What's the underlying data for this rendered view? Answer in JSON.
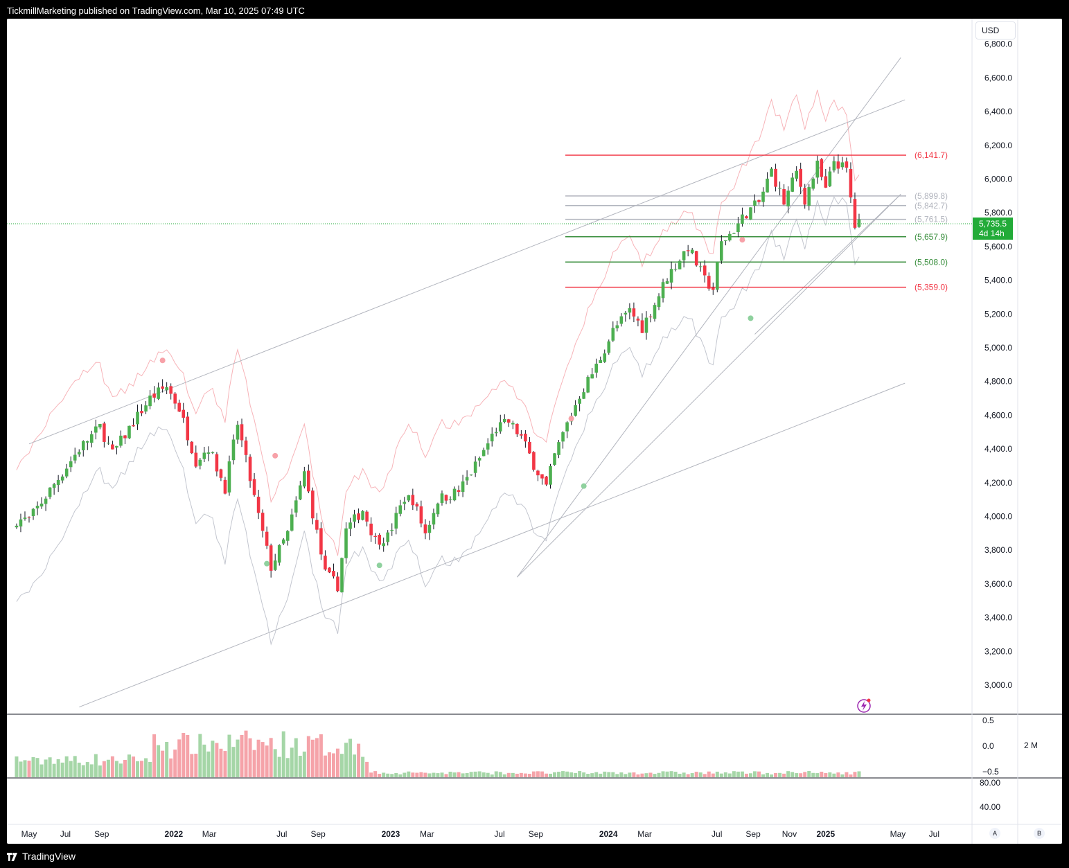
{
  "header": {
    "text": "TickmillMarketing published on TradingView.com, Mar 10, 2025 07:49 UTC"
  },
  "currency": "USD",
  "last_price": {
    "value": "5,735.5",
    "countdown": "4d 14h",
    "color": "#22ab38"
  },
  "footer": {
    "brand": "TradingView"
  },
  "axis_buttons": {
    "auto": "A",
    "log": "B"
  },
  "volume_scale_label": "2 M",
  "colors": {
    "up": "#4caf50",
    "down": "#f23645",
    "fib_red": "#f23645",
    "fib_green": "#388e3c",
    "fib_gray": "#b2b5be",
    "upper_band": "#f7b3b8",
    "lower_band": "#c3c6cf",
    "trendline": "#b2b5be",
    "volume_up": "#a5d6a7",
    "volume_down": "#f5a3a9"
  },
  "chart_data": {
    "type": "candlestick",
    "interval": "weekly",
    "price_axis": {
      "ticks": [
        3000,
        3200,
        3400,
        3600,
        3800,
        4000,
        4200,
        4400,
        4600,
        4800,
        5000,
        5200,
        5400,
        5600,
        5800,
        6000,
        6200,
        6400,
        6600,
        6800
      ],
      "tick_labels": [
        "3,000.0",
        "3,200.0",
        "3,400.0",
        "3,600.0",
        "3,800.0",
        "4,000.0",
        "4,200.0",
        "4,400.0",
        "4,600.0",
        "4,800.0",
        "5,000.0",
        "5,200.0",
        "5,400.0",
        "5,600.0",
        "5,800.0",
        "6,000.0",
        "6,200.0",
        "6,400.0",
        "6,600.0",
        "6,800.0"
      ],
      "range": [
        2840,
        6800
      ]
    },
    "time_axis": {
      "labels": [
        {
          "label": "May",
          "t": 0.0,
          "bold": false
        },
        {
          "label": "Jul",
          "t": 8.7,
          "bold": false
        },
        {
          "label": "Sep",
          "t": 17.4,
          "bold": false
        },
        {
          "label": "2022",
          "t": 34.7,
          "bold": true
        },
        {
          "label": "Mar",
          "t": 43.2,
          "bold": false
        },
        {
          "label": "Jul",
          "t": 60.6,
          "bold": false
        },
        {
          "label": "Sep",
          "t": 69.3,
          "bold": false
        },
        {
          "label": "2023",
          "t": 86.7,
          "bold": true
        },
        {
          "label": "Mar",
          "t": 95.4,
          "bold": false
        },
        {
          "label": "Jul",
          "t": 112.8,
          "bold": false
        },
        {
          "label": "Sep",
          "t": 121.5,
          "bold": false
        },
        {
          "label": "2024",
          "t": 138.9,
          "bold": true
        },
        {
          "label": "Mar",
          "t": 147.6,
          "bold": false
        },
        {
          "label": "Jul",
          "t": 164.9,
          "bold": false
        },
        {
          "label": "Sep",
          "t": 173.6,
          "bold": false
        },
        {
          "label": "Nov",
          "t": 182.3,
          "bold": false
        },
        {
          "label": "2025",
          "t": 191.0,
          "bold": true
        },
        {
          "label": "May",
          "t": 208.3,
          "bold": false
        },
        {
          "label": "Jul",
          "t": 217.0,
          "bold": false
        }
      ]
    },
    "anchors": [
      {
        "t": 0,
        "p": 3980
      },
      {
        "t": 6,
        "p": 4190
      },
      {
        "t": 12,
        "p": 4400
      },
      {
        "t": 17,
        "p": 4530
      },
      {
        "t": 20,
        "p": 4370
      },
      {
        "t": 25,
        "p": 4560
      },
      {
        "t": 29,
        "p": 4700
      },
      {
        "t": 33,
        "p": 4770
      },
      {
        "t": 36,
        "p": 4640
      },
      {
        "t": 40,
        "p": 4330
      },
      {
        "t": 43,
        "p": 4410
      },
      {
        "t": 47,
        "p": 4170
      },
      {
        "t": 50,
        "p": 4550
      },
      {
        "t": 55,
        "p": 4000
      },
      {
        "t": 58,
        "p": 3700
      },
      {
        "t": 62,
        "p": 3900
      },
      {
        "t": 66,
        "p": 4260
      },
      {
        "t": 71,
        "p": 3660
      },
      {
        "t": 74,
        "p": 3590
      },
      {
        "t": 76,
        "p": 3920
      },
      {
        "t": 80,
        "p": 4040
      },
      {
        "t": 83,
        "p": 3860
      },
      {
        "t": 86,
        "p": 3880
      },
      {
        "t": 90,
        "p": 4110
      },
      {
        "t": 92,
        "p": 4100
      },
      {
        "t": 95,
        "p": 3900
      },
      {
        "t": 98,
        "p": 4100
      },
      {
        "t": 103,
        "p": 4150
      },
      {
        "t": 107,
        "p": 4300
      },
      {
        "t": 112,
        "p": 4520
      },
      {
        "t": 115,
        "p": 4560
      },
      {
        "t": 118,
        "p": 4470
      },
      {
        "t": 121,
        "p": 4310
      },
      {
        "t": 124,
        "p": 4170
      },
      {
        "t": 126,
        "p": 4360
      },
      {
        "t": 129,
        "p": 4550
      },
      {
        "t": 132,
        "p": 4720
      },
      {
        "t": 136,
        "p": 4890
      },
      {
        "t": 140,
        "p": 5100
      },
      {
        "t": 144,
        "p": 5220
      },
      {
        "t": 147,
        "p": 5120
      },
      {
        "t": 150,
        "p": 5260
      },
      {
        "t": 153,
        "p": 5420
      },
      {
        "t": 158,
        "p": 5600
      },
      {
        "t": 162,
        "p": 5400
      },
      {
        "t": 164,
        "p": 5350
      },
      {
        "t": 166,
        "p": 5620
      },
      {
        "t": 169,
        "p": 5700
      },
      {
        "t": 172,
        "p": 5800
      },
      {
        "t": 175,
        "p": 5860
      },
      {
        "t": 178,
        "p": 6050
      },
      {
        "t": 181,
        "p": 5860
      },
      {
        "t": 184,
        "p": 6040
      },
      {
        "t": 186,
        "p": 5880
      },
      {
        "t": 189,
        "p": 6080
      },
      {
        "t": 191,
        "p": 5930
      },
      {
        "t": 193,
        "p": 6110
      },
      {
        "t": 196,
        "p": 6050
      },
      {
        "t": 198,
        "p": 5720
      },
      {
        "t": 199,
        "p": 5735
      }
    ],
    "fib_levels": [
      {
        "label": "(6,141.7)",
        "value": 6141.7,
        "color": "#f23645"
      },
      {
        "label": "(5,899.8)",
        "value": 5899.8,
        "color": "#b2b5be"
      },
      {
        "label": "(5,842.7)",
        "value": 5842.7,
        "color": "#b2b5be"
      },
      {
        "label": "(5,761.5)",
        "value": 5761.5,
        "color": "#b2b5be"
      },
      {
        "label": "(5,657.9)",
        "value": 5657.9,
        "color": "#388e3c"
      },
      {
        "label": "(5,508.0)",
        "value": 5508.0,
        "color": "#388e3c"
      },
      {
        "label": "(5,359.0)",
        "value": 5359.0,
        "color": "#f23645"
      }
    ],
    "signal_dots": [
      {
        "t": 32,
        "p": 4925,
        "side": "red"
      },
      {
        "t": 59,
        "p": 4360,
        "side": "red"
      },
      {
        "t": 57,
        "p": 3720,
        "side": "green"
      },
      {
        "t": 84,
        "p": 3710,
        "side": "green"
      },
      {
        "t": 130,
        "p": 4580,
        "side": "red"
      },
      {
        "t": 133,
        "p": 4180,
        "side": "green"
      },
      {
        "t": 171,
        "p": 5640,
        "side": "red"
      },
      {
        "t": 173,
        "p": 5175,
        "side": "green"
      }
    ],
    "volume_axis": {
      "tick_labels": [
        "0.5",
        "0.0",
        "−0.5"
      ]
    },
    "oscillator_axis": {
      "tick_labels": [
        "80.00",
        "40.00"
      ]
    }
  }
}
